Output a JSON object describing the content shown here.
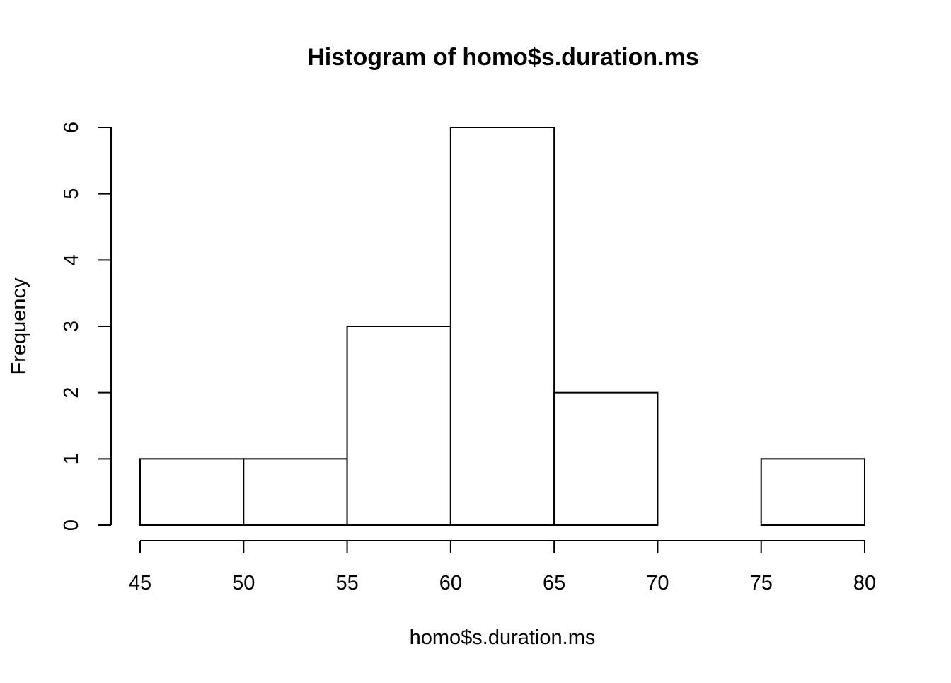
{
  "chart_data": {
    "type": "bar",
    "title": "Histogram of homo$s.duration.ms",
    "xlabel": "homo$s.duration.ms",
    "ylabel": "Frequency",
    "bins": [
      {
        "start": 45,
        "end": 50,
        "count": 1
      },
      {
        "start": 50,
        "end": 55,
        "count": 1
      },
      {
        "start": 55,
        "end": 60,
        "count": 3
      },
      {
        "start": 60,
        "end": 65,
        "count": 6
      },
      {
        "start": 65,
        "end": 70,
        "count": 2
      },
      {
        "start": 70,
        "end": 75,
        "count": 0
      },
      {
        "start": 75,
        "end": 80,
        "count": 1
      }
    ],
    "xlim": [
      45,
      80
    ],
    "ylim": [
      0,
      6
    ],
    "xticks": [
      45,
      50,
      55,
      60,
      65,
      70,
      75,
      80
    ],
    "yticks": [
      0,
      1,
      2,
      3,
      4,
      5,
      6
    ],
    "grid": false,
    "legend": "none",
    "colors": {
      "bar_fill": "#ffffff",
      "bar_stroke": "#000000",
      "axis": "#000000",
      "background": "#ffffff"
    }
  }
}
